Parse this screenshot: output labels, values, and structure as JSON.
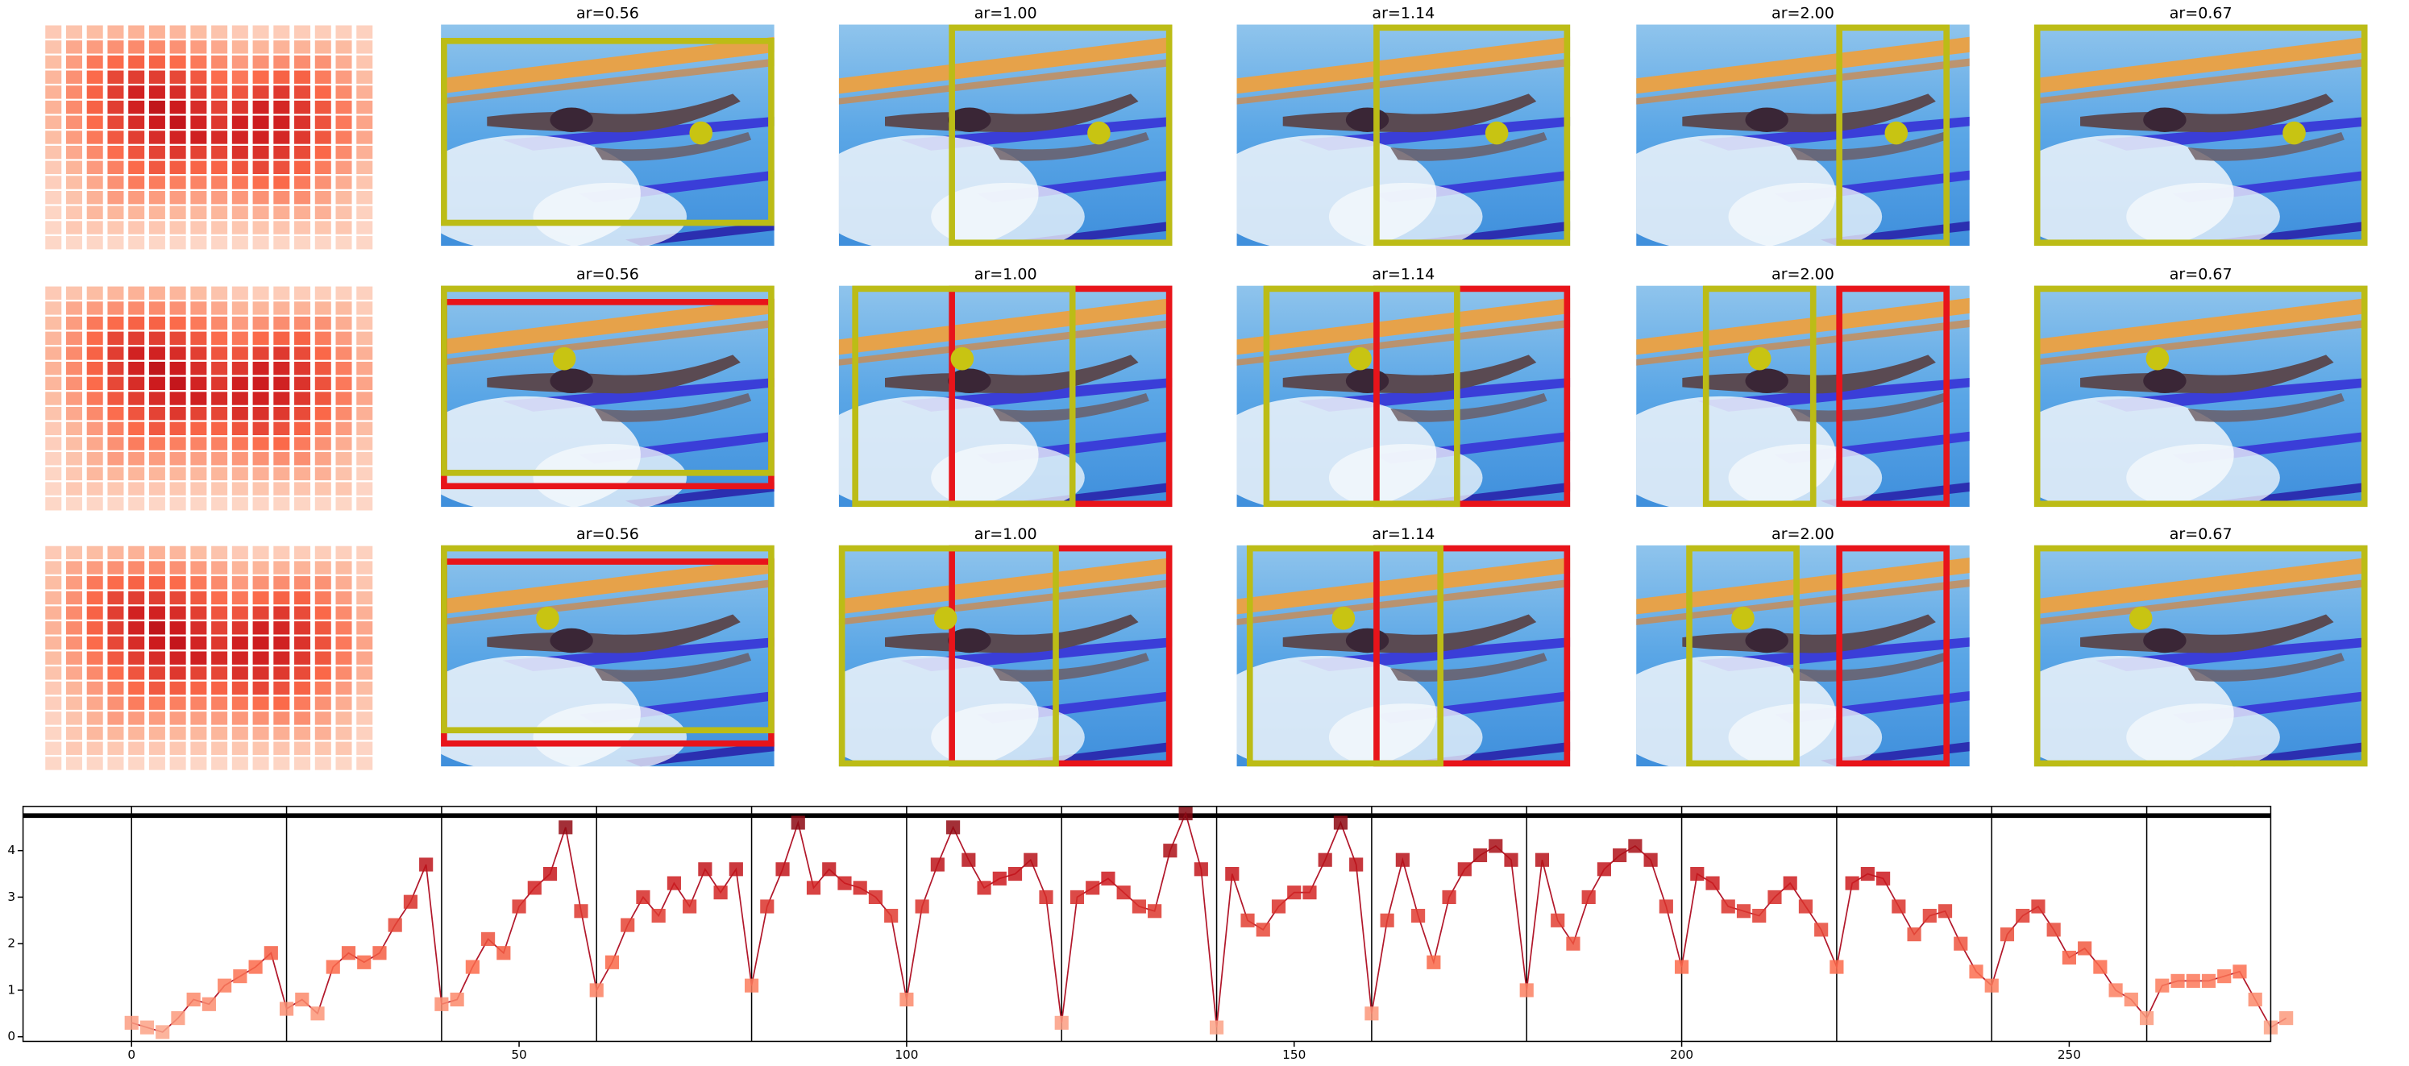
{
  "panels": {
    "titles": [
      [
        "ar=0.56",
        "ar=1.00",
        "ar=1.14",
        "ar=2.00",
        "ar=0.67"
      ],
      [
        "ar=0.56",
        "ar=1.00",
        "ar=1.14",
        "ar=2.00",
        "ar=0.67"
      ],
      [
        "ar=0.56",
        "ar=1.00",
        "ar=1.14",
        "ar=2.00",
        "ar=0.67"
      ]
    ]
  },
  "chart_data": {
    "type": "line",
    "cmap": "Reds",
    "line_color": "#b2182b",
    "x": [
      0,
      2,
      4,
      6,
      8,
      10,
      12,
      14,
      16,
      18,
      20,
      22,
      24,
      26,
      28,
      30,
      32,
      34,
      36,
      38,
      40,
      42,
      44,
      46,
      48,
      50,
      52,
      54,
      56,
      58,
      60,
      62,
      64,
      66,
      68,
      70,
      72,
      74,
      76,
      78,
      80,
      82,
      84,
      86,
      88,
      90,
      92,
      94,
      96,
      98,
      100,
      102,
      104,
      106,
      108,
      110,
      112,
      114,
      116,
      118,
      120,
      122,
      124,
      126,
      128,
      130,
      132,
      134,
      136,
      138,
      140,
      142,
      144,
      146,
      148,
      150,
      152,
      154,
      156,
      158,
      160,
      162,
      164,
      166,
      168,
      170,
      172,
      174,
      176,
      178,
      180,
      182,
      184,
      186,
      188,
      190,
      192,
      194,
      196,
      198,
      200,
      202,
      204,
      206,
      208,
      210,
      212,
      214,
      216,
      218,
      220,
      222,
      224,
      226,
      228,
      230,
      232,
      234,
      236,
      238,
      240,
      242,
      244,
      246,
      248,
      250,
      252,
      254,
      256,
      258,
      260,
      262,
      264,
      266,
      268,
      270,
      272,
      274,
      276,
      278
    ],
    "values": [
      0.3,
      0.2,
      0.1,
      0.4,
      0.8,
      0.7,
      1.1,
      1.3,
      1.5,
      1.8,
      0.6,
      0.8,
      0.5,
      1.5,
      1.8,
      1.6,
      1.8,
      2.4,
      2.9,
      3.7,
      0.7,
      0.8,
      1.5,
      2.1,
      1.8,
      2.8,
      3.2,
      3.5,
      4.5,
      2.7,
      1.0,
      1.6,
      2.4,
      3.0,
      2.6,
      3.3,
      2.8,
      3.6,
      3.1,
      3.6,
      1.1,
      2.8,
      3.6,
      4.6,
      3.2,
      3.6,
      3.3,
      3.2,
      3.0,
      2.6,
      0.8,
      2.8,
      3.7,
      4.5,
      3.8,
      3.2,
      3.4,
      3.5,
      3.8,
      3.0,
      0.3,
      3.0,
      3.2,
      3.4,
      3.1,
      2.8,
      2.7,
      4.0,
      4.8,
      3.6,
      0.2,
      3.5,
      2.5,
      2.3,
      2.8,
      3.1,
      3.1,
      3.8,
      4.6,
      3.7,
      0.5,
      2.5,
      3.8,
      2.6,
      1.6,
      3.0,
      3.6,
      3.9,
      4.1,
      3.8,
      1.0,
      3.8,
      2.5,
      2.0,
      3.0,
      3.6,
      3.9,
      4.1,
      3.8,
      2.8,
      1.5,
      3.5,
      3.3,
      2.8,
      2.7,
      2.6,
      3.0,
      3.3,
      2.8,
      2.3,
      1.5,
      3.3,
      3.5,
      3.4,
      2.8,
      2.2,
      2.6,
      2.7,
      2.0,
      1.4,
      1.1,
      2.2,
      2.6,
      2.8,
      2.3,
      1.7,
      1.9,
      1.5,
      1.0,
      0.8,
      0.4,
      1.1,
      1.2,
      1.2,
      1.2,
      1.3,
      1.4,
      0.8,
      0.2,
      0.4
    ],
    "xlim": [
      -14,
      276
    ],
    "ylim": [
      -0.1,
      4.95
    ],
    "xticks": [
      0,
      50,
      100,
      150,
      200,
      250
    ],
    "yticks": [
      0,
      1,
      2,
      3,
      4
    ],
    "vlines": [
      0,
      20,
      40,
      60,
      80,
      100,
      120,
      140,
      160,
      180,
      200,
      220,
      240,
      260
    ]
  }
}
